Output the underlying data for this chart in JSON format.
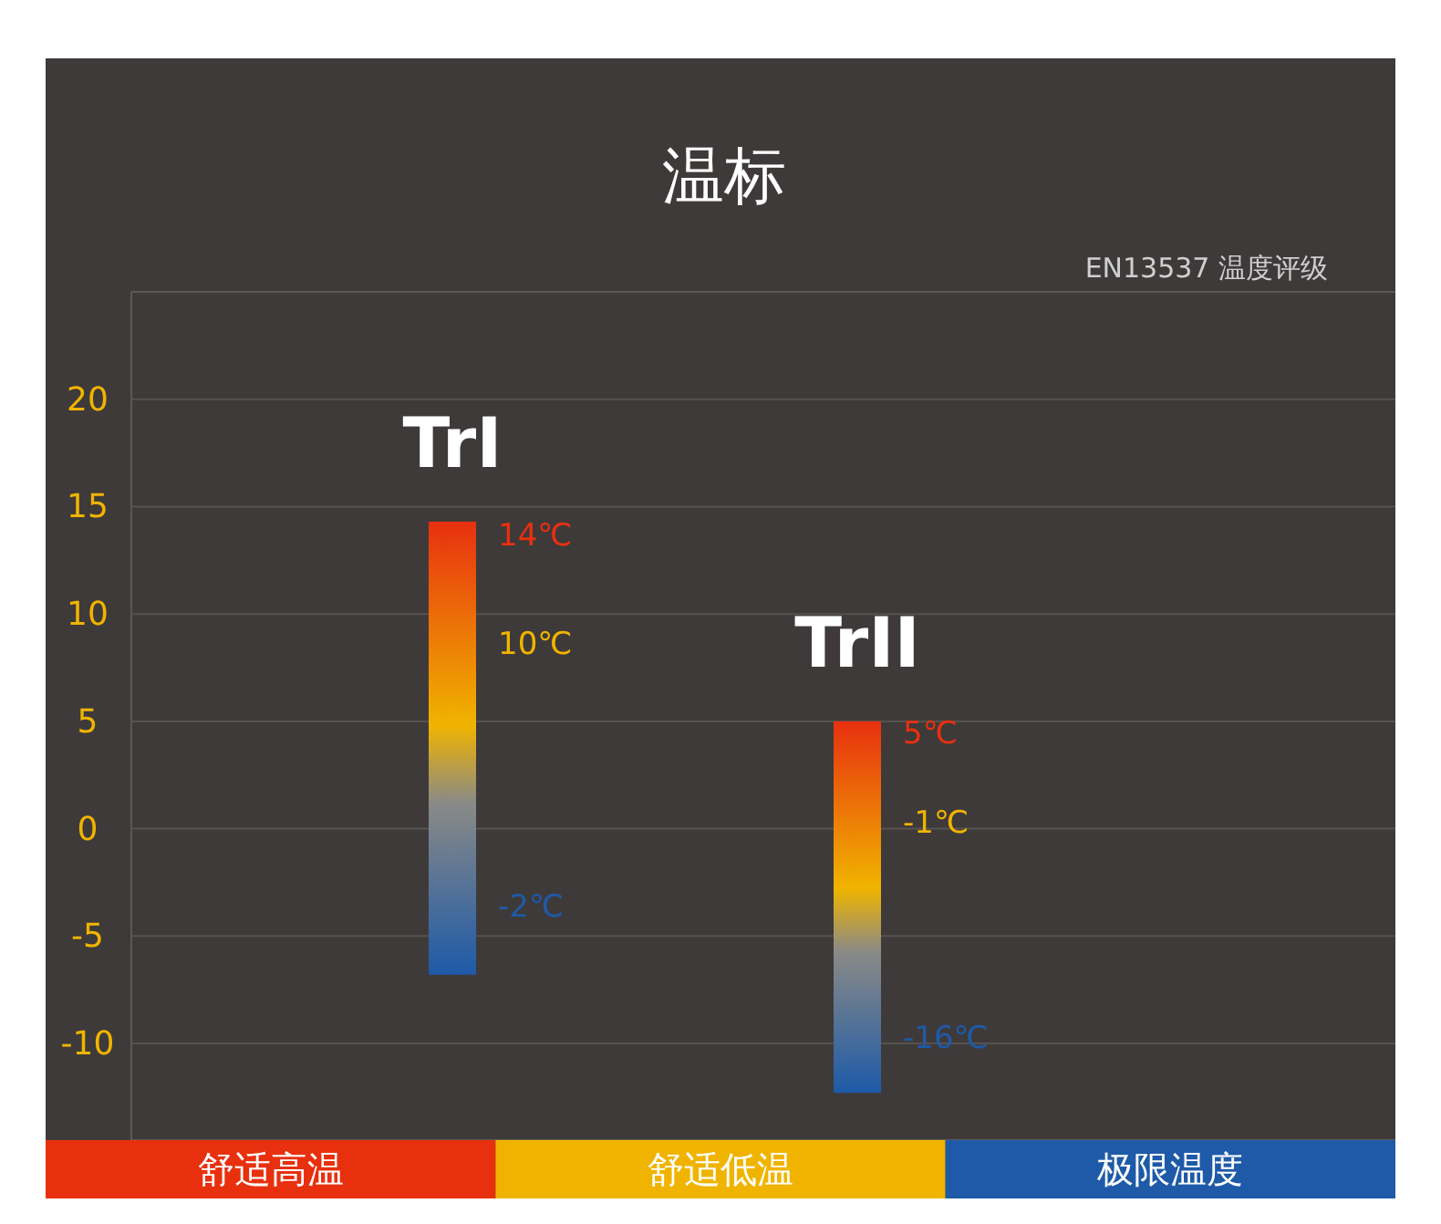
{
  "chart_data": {
    "type": "bar",
    "title": "温标",
    "subtitle": "EN13537 温度评级",
    "categories": [
      "TrI",
      "TrII"
    ],
    "series": [
      {
        "color": "#e8300f",
        "base": [
          -6.8,
          -12.3
        ],
        "values": [
          21.1,
          17.3
        ]
      }
    ],
    "ylim": [
      -14.5,
      25
    ],
    "yticks": [
      -10,
      -5,
      0,
      5,
      10,
      15,
      20
    ],
    "grid": "y",
    "annotations": [
      "14℃",
      "10℃",
      "-2℃",
      "5℃",
      "-1℃",
      "-16℃",
      "舒适高温",
      "舒适低温",
      "极限温度"
    ]
  }
}
